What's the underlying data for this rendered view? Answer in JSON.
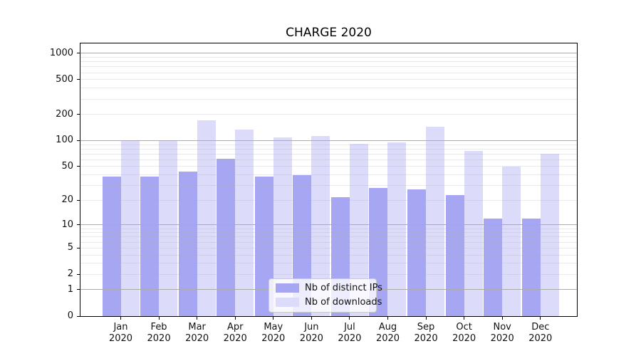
{
  "chart_data": {
    "type": "bar",
    "title": "CHARGE 2020",
    "categories": [
      "Jan 2020",
      "Feb 2020",
      "Mar 2020",
      "Apr 2020",
      "May 2020",
      "Jun 2020",
      "Jul 2020",
      "Aug 2020",
      "Sep 2020",
      "Oct 2020",
      "Nov 2020",
      "Dec 2020"
    ],
    "series": [
      {
        "name": "Nb of distinct IPs",
        "color": "#a6a6f2",
        "values": [
          38,
          38,
          44,
          62,
          38,
          40,
          22,
          28,
          27,
          23,
          12,
          12
        ]
      },
      {
        "name": "Nb of downloads",
        "color": "#dcdcfa",
        "values": [
          100,
          100,
          170,
          135,
          108,
          113,
          92,
          96,
          145,
          76,
          50,
          70
        ]
      }
    ],
    "yscale": "log1p",
    "yticks": [
      0,
      1,
      2,
      5,
      10,
      20,
      50,
      100,
      200,
      500,
      1000
    ],
    "ylim": [
      0,
      1350
    ],
    "xlabel": "",
    "ylabel": "",
    "grid": "both, drawn above bars",
    "legend_position": "lower center"
  },
  "colors": {
    "background": "#ffffff",
    "axis": "#000000",
    "grid_major": "#ababab",
    "grid_minor": "#e8e8e8",
    "legend_border": "#cccccc",
    "legend_background": "rgba(255,255,255,0.8)",
    "tick_text": "#111111"
  }
}
